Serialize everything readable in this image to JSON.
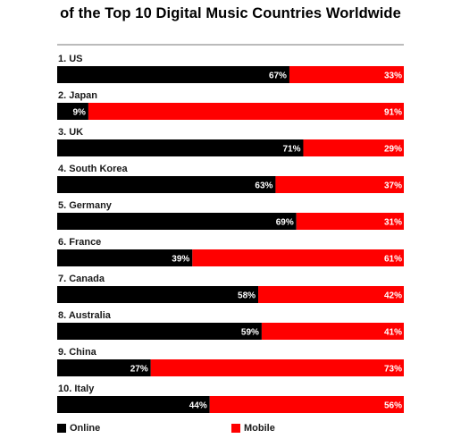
{
  "chart_data": {
    "type": "bar",
    "orientation": "horizontal-stacked-100",
    "title": "of the Top 10 Digital Music Countries Worldwide",
    "categories": [
      "1. US",
      "2. Japan",
      "3. UK",
      "4. South Korea",
      "5. Germany",
      "6. France",
      "7. Canada",
      "8. Australia",
      "9. China",
      "10. Italy"
    ],
    "series": [
      {
        "name": "Online",
        "color": "#000000",
        "values": [
          67,
          9,
          71,
          63,
          69,
          39,
          58,
          59,
          27,
          44
        ]
      },
      {
        "name": "Mobile",
        "color": "#ff0000",
        "values": [
          33,
          91,
          29,
          37,
          31,
          61,
          42,
          41,
          73,
          56
        ]
      }
    ],
    "value_suffix": "%",
    "xlim": [
      0,
      100
    ],
    "grid": false,
    "legend_position": "bottom"
  },
  "legend": {
    "online_label": "Online",
    "mobile_label": "Mobile"
  }
}
